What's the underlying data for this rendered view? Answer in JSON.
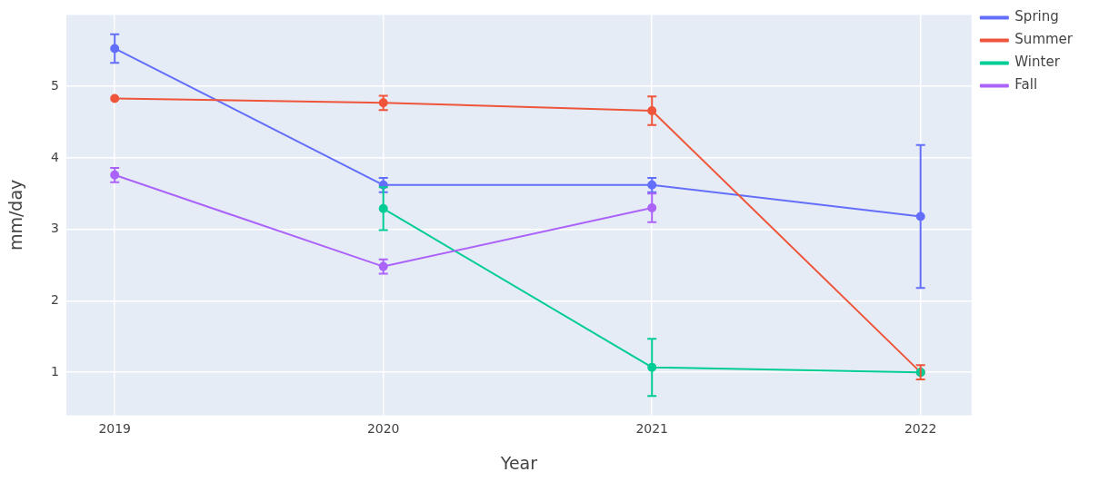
{
  "chart_data": {
    "type": "line",
    "xlabel": "Year",
    "ylabel": "mm/day",
    "x": [
      2019,
      2020,
      2021,
      2022
    ],
    "series": [
      {
        "name": "Spring",
        "color": "#636efa",
        "values": [
          5.53,
          3.62,
          3.62,
          3.18
        ],
        "errors": [
          0.2,
          0.1,
          0.1,
          1.0
        ]
      },
      {
        "name": "Summer",
        "color": "#ef553b",
        "values": [
          4.83,
          4.77,
          4.66,
          1.0
        ],
        "errors": [
          null,
          0.1,
          0.2,
          0.1
        ]
      },
      {
        "name": "Winter",
        "color": "#00cc96",
        "values": [
          null,
          3.29,
          1.07,
          1.0
        ],
        "errors": [
          null,
          0.3,
          0.4,
          null
        ]
      },
      {
        "name": "Fall",
        "color": "#ab63fa",
        "values": [
          3.76,
          2.48,
          3.3,
          null
        ],
        "errors": [
          0.1,
          0.1,
          0.2,
          null
        ]
      }
    ],
    "xlim": [
      2018.82,
      2022.19
    ],
    "xticks": [
      2019,
      2020,
      2021,
      2022
    ],
    "ylim": [
      0.4,
      6.0
    ],
    "yticks": [
      1,
      2,
      3,
      4,
      5
    ],
    "grid": true,
    "legend": "top right",
    "marker": "circle",
    "line_style": "solid"
  }
}
